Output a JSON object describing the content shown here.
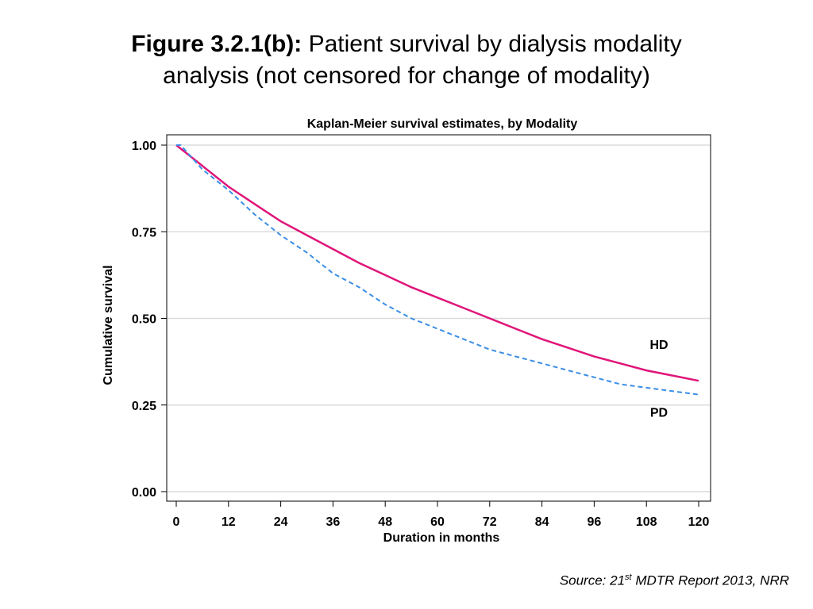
{
  "slide": {
    "title_label": "Figure 3.2.1(b):",
    "title_text": " Patient survival by dialysis modality",
    "title_line2": "analysis (not censored for change of modality)"
  },
  "source": {
    "prefix": "Source: 21",
    "sup": "st",
    "suffix": " MDTR Report 2013, NRR"
  },
  "chart_data": {
    "type": "line",
    "title": "Kaplan-Meier survival estimates, by Modality",
    "xlabel": "Duration in months",
    "ylabel": "Cumulative survival",
    "xlim": [
      0,
      120
    ],
    "ylim": [
      0,
      1
    ],
    "xticks": [
      "0",
      "12",
      "24",
      "36",
      "48",
      "60",
      "72",
      "84",
      "96",
      "108",
      "120"
    ],
    "yticks": [
      "0.00",
      "0.25",
      "0.50",
      "0.75",
      "1.00"
    ],
    "grid": true,
    "series": [
      {
        "name": "HD",
        "color": "#e0157a",
        "dash": "solid",
        "x": [
          0,
          6,
          12,
          18,
          24,
          30,
          36,
          42,
          48,
          54,
          60,
          66,
          72,
          78,
          84,
          90,
          96,
          102,
          108,
          114,
          120
        ],
        "y": [
          1.0,
          0.94,
          0.88,
          0.83,
          0.78,
          0.74,
          0.7,
          0.66,
          0.625,
          0.59,
          0.56,
          0.53,
          0.5,
          0.47,
          0.44,
          0.415,
          0.39,
          0.37,
          0.35,
          0.335,
          0.32
        ]
      },
      {
        "name": "PD",
        "color": "#3a8ee6",
        "dash": "dashed",
        "x": [
          0,
          1,
          6,
          12,
          18,
          24,
          30,
          36,
          42,
          48,
          54,
          60,
          66,
          72,
          78,
          84,
          90,
          96,
          102,
          108,
          114,
          120
        ],
        "y": [
          1.0,
          1.0,
          0.93,
          0.87,
          0.8,
          0.74,
          0.69,
          0.63,
          0.59,
          0.54,
          0.5,
          0.47,
          0.44,
          0.41,
          0.39,
          0.37,
          0.35,
          0.33,
          0.31,
          0.3,
          0.29,
          0.28
        ]
      }
    ]
  }
}
